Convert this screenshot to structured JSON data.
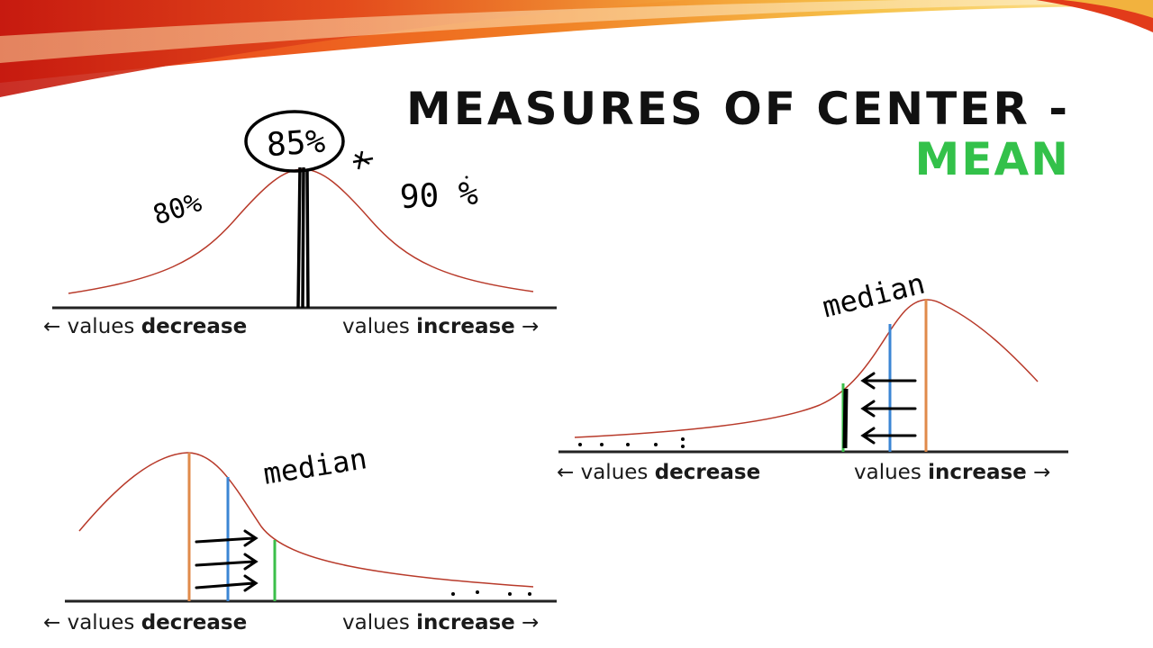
{
  "title": {
    "line1": "MEASURES OF CENTER -",
    "line2": "MEAN"
  },
  "colors": {
    "title_dark": "#111111",
    "title_accent": "#33c14a",
    "curve": "#b83a2a",
    "mean_line": "#e08a4a",
    "median_line": "#3b86d4",
    "mode_line": "#3bbf4a",
    "ink": "#000000"
  },
  "axis_labels": {
    "arrow_left": "←",
    "arrow_right": "→",
    "values": "values",
    "decrease": "decrease",
    "increase": "increase"
  },
  "annotations": {
    "top_center": "85%",
    "top_left": "80%",
    "top_right": "90 %",
    "median_1": "median",
    "median_2": "median"
  }
}
